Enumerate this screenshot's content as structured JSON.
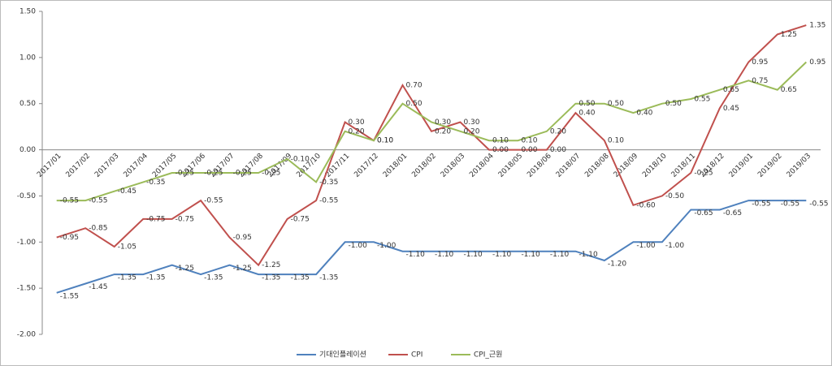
{
  "chart_data": {
    "type": "line",
    "categories": [
      "2017/01",
      "2017/02",
      "2017/03",
      "2017/04",
      "2017/05",
      "2017/06",
      "2017/07",
      "2017/08",
      "2017/09",
      "2017/10",
      "2017/11",
      "2017/12",
      "2018/01",
      "2018/02",
      "2018/03",
      "2018/04",
      "2018/05",
      "2018/06",
      "2018/07",
      "2018/08",
      "2018/09",
      "2018/10",
      "2018/11",
      "2018/12",
      "2019/01",
      "2019/02",
      "2019/03"
    ],
    "series": [
      {
        "name": "기대인플레이션",
        "color": "#4f81bd",
        "label_color": "#1f3864",
        "values": [
          -1.55,
          -1.45,
          -1.35,
          -1.35,
          -1.25,
          -1.35,
          -1.25,
          -1.35,
          -1.35,
          -1.35,
          -1,
          -1,
          -1.1,
          -1.1,
          -1.1,
          -1.1,
          -1.1,
          -1.1,
          -1.1,
          -1.2,
          -1,
          -1,
          -0.65,
          -0.65,
          -0.55,
          -0.55,
          -0.55
        ],
        "value_labels": [
          "-1.55",
          "-1.45",
          "-1.35",
          "-1.35",
          "-1.25",
          "-1.35",
          "-1.25",
          "-1.35",
          "-1.35",
          "-1.35",
          "-1.00",
          "-1.00",
          "-1.10",
          "-1.10",
          "-1.10",
          "-1.10",
          "-1.10",
          "-1.10",
          "-1.10",
          "-1.20",
          "-1.00",
          "-1.00",
          "-0.65",
          "-0.65",
          "-0.55",
          "-0.55",
          "-0.55"
        ]
      },
      {
        "name": "CPI",
        "color": "#c0504d",
        "label_color": "#c00000",
        "values": [
          -0.95,
          -0.85,
          -1.05,
          -0.75,
          -0.75,
          -0.55,
          -0.95,
          -1.25,
          -0.75,
          -0.55,
          0.3,
          0.1,
          0.7,
          0.2,
          0.3,
          0,
          0,
          0,
          0.4,
          0.1,
          -0.6,
          -0.5,
          -0.25,
          0.45,
          0.95,
          1.25,
          1.35
        ],
        "value_labels": [
          "-0.95",
          "-0.85",
          "-1.05",
          "-0.75",
          "-0.75",
          "-0.55",
          "-0.95",
          "-1.25",
          "-0.75",
          "-0.55",
          "0.30",
          "0.10",
          "0.70",
          "0.20",
          "0.30",
          "0.00",
          "0.00",
          "0.00",
          "0.40",
          "0.10",
          "-0.60",
          "-0.50",
          "-0.25",
          "0.45",
          "0.95",
          "1.25",
          "1.35"
        ]
      },
      {
        "name": "CPI_근원",
        "color": "#9bbb59",
        "label_color": "#4f6228",
        "values": [
          -0.55,
          -0.55,
          -0.45,
          -0.35,
          -0.25,
          -0.25,
          -0.25,
          -0.25,
          -0.1,
          -0.35,
          0.2,
          0.1,
          0.5,
          0.3,
          0.2,
          0.1,
          0.1,
          0.2,
          0.5,
          0.5,
          0.4,
          0.5,
          0.55,
          0.65,
          0.75,
          0.65,
          0.95
        ],
        "value_labels": [
          "-0.55",
          "-0.55",
          "-0.45",
          "-0.35",
          "-0.25",
          "-0.25",
          "-0.25",
          "-0.25",
          "-0.10",
          "-0.35",
          "0.20",
          "0.10",
          "0.50",
          "0.30",
          "0.20",
          "0.10",
          "0.10",
          "0.20",
          "0.50",
          "0.50",
          "0.40",
          "0.50",
          "0.55",
          "0.65",
          "0.75",
          "0.65",
          "0.95"
        ]
      }
    ],
    "ylim": [
      -2,
      1.5
    ],
    "yticks": [
      {
        "value": -2,
        "label": "-2.00"
      },
      {
        "value": -1.5,
        "label": "-1.50"
      },
      {
        "value": -1,
        "label": "-1.00"
      },
      {
        "value": -0.5,
        "label": "-0.50"
      },
      {
        "value": 0,
        "label": "0.00"
      },
      {
        "value": 0.5,
        "label": "0.50"
      },
      {
        "value": 1,
        "label": "1.00"
      },
      {
        "value": 1.5,
        "label": "1.50"
      }
    ],
    "legend": "bottom"
  }
}
